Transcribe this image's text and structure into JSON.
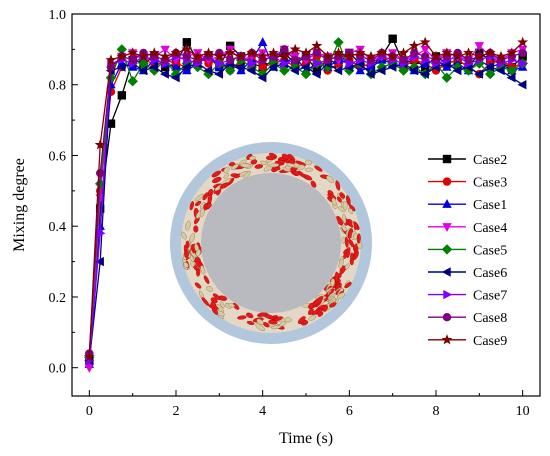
{
  "chart_data": {
    "type": "line",
    "xlabel": "Time (s)",
    "ylabel": "Mixing degree",
    "xlim": [
      -0.4,
      10.4
    ],
    "ylim": [
      -0.08,
      1.0
    ],
    "xticks": [
      0,
      2,
      4,
      6,
      8,
      10
    ],
    "yticks": [
      0.0,
      0.2,
      0.4,
      0.6,
      0.8,
      1.0
    ],
    "ytick_labels": [
      "0.0",
      "0.2",
      "0.4",
      "0.6",
      "0.8",
      "1.0"
    ],
    "legend_position": "right",
    "inset": "mixer cross-section (ring of particles)",
    "x": [
      0,
      0.25,
      0.5,
      0.75,
      1.0,
      1.25,
      1.5,
      1.75,
      2.0,
      2.25,
      2.5,
      2.75,
      3.0,
      3.25,
      3.5,
      3.75,
      4.0,
      4.25,
      4.5,
      4.75,
      5.0,
      5.25,
      5.5,
      5.75,
      6.0,
      6.25,
      6.5,
      6.75,
      7.0,
      7.25,
      7.5,
      7.75,
      8.0,
      8.25,
      8.5,
      8.75,
      9.0,
      9.25,
      9.5,
      9.75,
      10.0
    ],
    "series": [
      {
        "name": "Case2",
        "color": "#000000",
        "marker": "square",
        "values": [
          0.02,
          0.45,
          0.69,
          0.77,
          0.87,
          0.86,
          0.88,
          0.85,
          0.86,
          0.92,
          0.87,
          0.88,
          0.85,
          0.91,
          0.88,
          0.86,
          0.85,
          0.87,
          0.89,
          0.86,
          0.88,
          0.84,
          0.87,
          0.86,
          0.89,
          0.86,
          0.85,
          0.88,
          0.93,
          0.86,
          0.87,
          0.85,
          0.88,
          0.86,
          0.87,
          0.85,
          0.89,
          0.87,
          0.86,
          0.85,
          0.88
        ]
      },
      {
        "name": "Case3",
        "color": "#e00000",
        "marker": "circle",
        "values": [
          0.04,
          0.5,
          0.78,
          0.85,
          0.86,
          0.88,
          0.85,
          0.87,
          0.86,
          0.85,
          0.88,
          0.86,
          0.87,
          0.84,
          0.86,
          0.88,
          0.85,
          0.86,
          0.87,
          0.85,
          0.86,
          0.88,
          0.84,
          0.86,
          0.87,
          0.85,
          0.86,
          0.88,
          0.86,
          0.85,
          0.87,
          0.86,
          0.84,
          0.86,
          0.87,
          0.85,
          0.83,
          0.86,
          0.87,
          0.85,
          0.86
        ]
      },
      {
        "name": "Case1",
        "color": "#0000e0",
        "marker": "triangle-up",
        "values": [
          0.01,
          0.4,
          0.8,
          0.86,
          0.85,
          0.84,
          0.87,
          0.86,
          0.85,
          0.84,
          0.86,
          0.88,
          0.85,
          0.86,
          0.84,
          0.87,
          0.92,
          0.85,
          0.86,
          0.88,
          0.84,
          0.86,
          0.85,
          0.87,
          0.86,
          0.84,
          0.85,
          0.87,
          0.86,
          0.85,
          0.84,
          0.86,
          0.87,
          0.85,
          0.86,
          0.84,
          0.87,
          0.85,
          0.86,
          0.84,
          0.85
        ]
      },
      {
        "name": "Case4",
        "color": "#e000e0",
        "marker": "triangle-down",
        "values": [
          0.0,
          0.48,
          0.84,
          0.88,
          0.89,
          0.87,
          0.88,
          0.9,
          0.87,
          0.88,
          0.89,
          0.87,
          0.88,
          0.9,
          0.87,
          0.88,
          0.89,
          0.87,
          0.9,
          0.88,
          0.87,
          0.89,
          0.88,
          0.87,
          0.89,
          0.9,
          0.87,
          0.88,
          0.89,
          0.87,
          0.88,
          0.9,
          0.87,
          0.89,
          0.88,
          0.87,
          0.91,
          0.88,
          0.87,
          0.89,
          0.9
        ]
      },
      {
        "name": "Case5",
        "color": "#008000",
        "marker": "diamond",
        "values": [
          0.03,
          0.52,
          0.82,
          0.9,
          0.81,
          0.86,
          0.84,
          0.87,
          0.83,
          0.86,
          0.85,
          0.83,
          0.86,
          0.84,
          0.87,
          0.85,
          0.83,
          0.86,
          0.84,
          0.85,
          0.83,
          0.86,
          0.85,
          0.92,
          0.84,
          0.86,
          0.83,
          0.85,
          0.86,
          0.84,
          0.85,
          0.83,
          0.86,
          0.82,
          0.85,
          0.84,
          0.86,
          0.83,
          0.85,
          0.84,
          0.86
        ]
      },
      {
        "name": "Case6",
        "color": "#000080",
        "marker": "triangle-left",
        "values": [
          0.02,
          0.3,
          0.84,
          0.85,
          0.86,
          0.84,
          0.85,
          0.83,
          0.82,
          0.85,
          0.86,
          0.84,
          0.83,
          0.86,
          0.85,
          0.84,
          0.82,
          0.85,
          0.86,
          0.84,
          0.85,
          0.83,
          0.86,
          0.84,
          0.85,
          0.86,
          0.83,
          0.84,
          0.85,
          0.86,
          0.84,
          0.83,
          0.85,
          0.86,
          0.84,
          0.85,
          0.83,
          0.85,
          0.84,
          0.82,
          0.8
        ]
      },
      {
        "name": "Case7",
        "color": "#8000ff",
        "marker": "triangle-right",
        "values": [
          0.02,
          0.38,
          0.86,
          0.87,
          0.86,
          0.88,
          0.87,
          0.86,
          0.88,
          0.87,
          0.86,
          0.88,
          0.86,
          0.87,
          0.88,
          0.86,
          0.87,
          0.88,
          0.86,
          0.87,
          0.88,
          0.86,
          0.87,
          0.88,
          0.86,
          0.87,
          0.86,
          0.88,
          0.87,
          0.86,
          0.88,
          0.87,
          0.86,
          0.87,
          0.88,
          0.86,
          0.87,
          0.88,
          0.86,
          0.87,
          0.86
        ]
      },
      {
        "name": "Case8",
        "color": "#800080",
        "marker": "circle",
        "values": [
          0.04,
          0.55,
          0.85,
          0.88,
          0.87,
          0.89,
          0.88,
          0.87,
          0.89,
          0.88,
          0.87,
          0.88,
          0.89,
          0.87,
          0.88,
          0.89,
          0.87,
          0.88,
          0.9,
          0.87,
          0.88,
          0.89,
          0.87,
          0.88,
          0.89,
          0.88,
          0.87,
          0.89,
          0.88,
          0.87,
          0.89,
          0.88,
          0.87,
          0.88,
          0.89,
          0.87,
          0.88,
          0.89,
          0.87,
          0.88,
          0.89
        ]
      },
      {
        "name": "Case9",
        "color": "#800000",
        "marker": "star",
        "values": [
          0.03,
          0.63,
          0.87,
          0.88,
          0.89,
          0.88,
          0.89,
          0.88,
          0.89,
          0.9,
          0.88,
          0.89,
          0.88,
          0.89,
          0.88,
          0.89,
          0.88,
          0.89,
          0.88,
          0.9,
          0.89,
          0.91,
          0.88,
          0.89,
          0.88,
          0.89,
          0.88,
          0.89,
          0.88,
          0.89,
          0.91,
          0.92,
          0.88,
          0.89,
          0.88,
          0.89,
          0.88,
          0.89,
          0.88,
          0.89,
          0.92
        ]
      }
    ]
  }
}
